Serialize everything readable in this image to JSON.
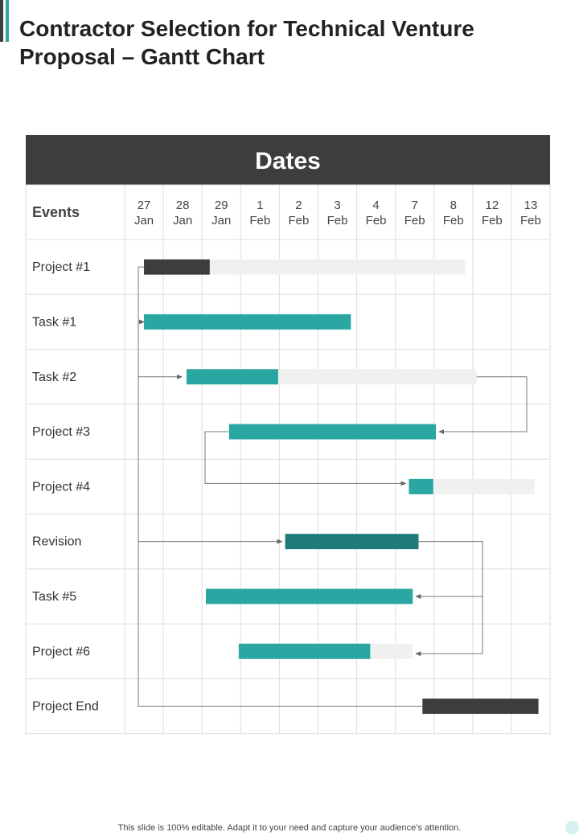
{
  "page": {
    "title": "Contractor Selection for Technical Venture Proposal – Gantt Chart",
    "footer": "This slide is 100% editable. Adapt it to your need and capture your audience’s attention.",
    "colors": {
      "header_bg": "#3d3d3d",
      "teal": "#2aa7a3",
      "dark_teal": "#1f7b79",
      "dark": "#3d3d3d",
      "track": "#f0f0f0",
      "grid": "#dddddd"
    }
  },
  "chart_data": {
    "type": "gantt",
    "header": "Dates",
    "events_label": "Events",
    "dates": [
      {
        "day": "27",
        "month": "Jan"
      },
      {
        "day": "28",
        "month": "Jan"
      },
      {
        "day": "29",
        "month": "Jan"
      },
      {
        "day": "1",
        "month": "Feb"
      },
      {
        "day": "2",
        "month": "Feb"
      },
      {
        "day": "3",
        "month": "Feb"
      },
      {
        "day": "4",
        "month": "Feb"
      },
      {
        "day": "7",
        "month": "Feb"
      },
      {
        "day": "8",
        "month": "Feb"
      },
      {
        "day": "12",
        "month": "Feb"
      },
      {
        "day": "13",
        "month": "Feb"
      }
    ],
    "rows": [
      {
        "label": "Project #1",
        "bar_start": 0.5,
        "bar_end": 2.2,
        "bar_color": "dark",
        "track_end": 8.8
      },
      {
        "label": "Task #1",
        "bar_start": 0.5,
        "bar_end": 5.85,
        "bar_color": "teal"
      },
      {
        "label": "Task #2",
        "bar_start": 1.6,
        "bar_end": 3.97,
        "bar_color": "teal",
        "track_end": 9.1
      },
      {
        "label": "Project #3",
        "bar_start": 2.7,
        "bar_end": 8.05,
        "bar_color": "teal"
      },
      {
        "label": "Project #4",
        "bar_start": 7.35,
        "bar_end": 7.98,
        "bar_color": "teal",
        "track_end": 10.6
      },
      {
        "label": "Revision",
        "bar_start": 4.15,
        "bar_end": 7.6,
        "bar_color": "dark_teal"
      },
      {
        "label": "Task #5",
        "bar_start": 2.1,
        "bar_end": 7.45,
        "bar_color": "teal"
      },
      {
        "label": "Project #6",
        "bar_start": 2.95,
        "bar_end": 6.35,
        "bar_color": "teal",
        "track_end": 7.45
      },
      {
        "label": "Project End",
        "bar_start": 7.7,
        "bar_end": 10.7,
        "bar_color": "dark"
      }
    ]
  }
}
